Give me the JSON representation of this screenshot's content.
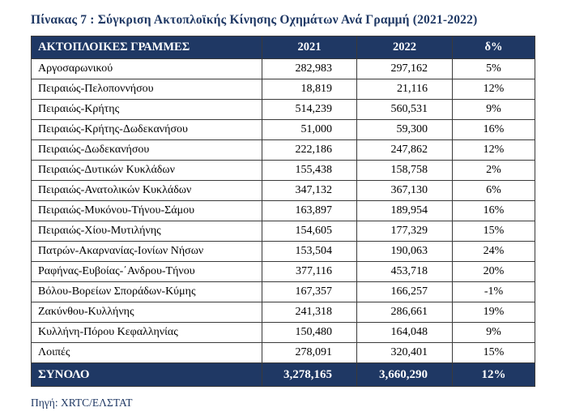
{
  "title": "Πίνακας 7 : Σύγκριση Ακτοπλοϊκής Κίνησης Οχημάτων Ανά Γραμμή (2021-2022)",
  "source_note": "Πηγή: XRTC/ΕΛΣΤΑΤ",
  "colors": {
    "header_bg": "#1F3864",
    "header_text": "#FFFFFF",
    "title_text": "#1F3864",
    "border": "#3A3A3A"
  },
  "table": {
    "headers": [
      "ΑΚΤΟΠΛΟΙΚΕΣ ΓΡΑΜΜΕΣ",
      "2021",
      "2022",
      "δ%"
    ],
    "rows": [
      {
        "line": "Αργοσαρωνικού",
        "y2021": "282,983",
        "y2022": "297,162",
        "delta": "5%"
      },
      {
        "line": "Πειραιώς-Πελοποννήσου",
        "y2021": "18,819",
        "y2022": "21,116",
        "delta": "12%"
      },
      {
        "line": "Πειραιώς-Κρήτης",
        "y2021": "514,239",
        "y2022": "560,531",
        "delta": "9%"
      },
      {
        "line": "Πειραιώς-Κρήτης-Δωδεκανήσου",
        "y2021": "51,000",
        "y2022": "59,300",
        "delta": "16%"
      },
      {
        "line": "Πειραιώς-Δωδεκανήσου",
        "y2021": "222,186",
        "y2022": "247,862",
        "delta": "12%"
      },
      {
        "line": "Πειραιώς-Δυτικών Κυκλάδων",
        "y2021": "155,438",
        "y2022": "158,758",
        "delta": "2%"
      },
      {
        "line": "Πειραιώς-Ανατολικών Κυκλάδων",
        "y2021": "347,132",
        "y2022": "367,130",
        "delta": "6%"
      },
      {
        "line": "Πειραιώς-Μυκόνου-Τήνου-Σάμου",
        "y2021": "163,897",
        "y2022": "189,954",
        "delta": "16%"
      },
      {
        "line": "Πειραιώς-Χίου-Μυτιλήνης",
        "y2021": "154,605",
        "y2022": "177,329",
        "delta": "15%"
      },
      {
        "line": "Πατρών-Ακαρνανίας-Ιονίων Νήσων",
        "y2021": "153,504",
        "y2022": "190,063",
        "delta": "24%"
      },
      {
        "line": "Ραφήνας-Ευβοίας-΄Ανδρου-Τήνου",
        "y2021": "377,116",
        "y2022": "453,718",
        "delta": "20%"
      },
      {
        "line": "Βόλου-Βορείων Σποράδων-Κύμης",
        "y2021": "167,357",
        "y2022": "166,257",
        "delta": "-1%"
      },
      {
        "line": "Ζακύνθου-Κυλλήνης",
        "y2021": "241,318",
        "y2022": "286,661",
        "delta": "19%"
      },
      {
        "line": "Κυλλήνη-Πόρου Κεφαλληνίας",
        "y2021": "150,480",
        "y2022": "164,048",
        "delta": "9%"
      },
      {
        "line": "Λοιπές",
        "y2021": "278,091",
        "y2022": "320,401",
        "delta": "15%"
      }
    ],
    "total": {
      "line": "ΣΥΝΟΛΟ",
      "y2021": "3,278,165",
      "y2022": "3,660,290",
      "delta": "12%"
    }
  }
}
